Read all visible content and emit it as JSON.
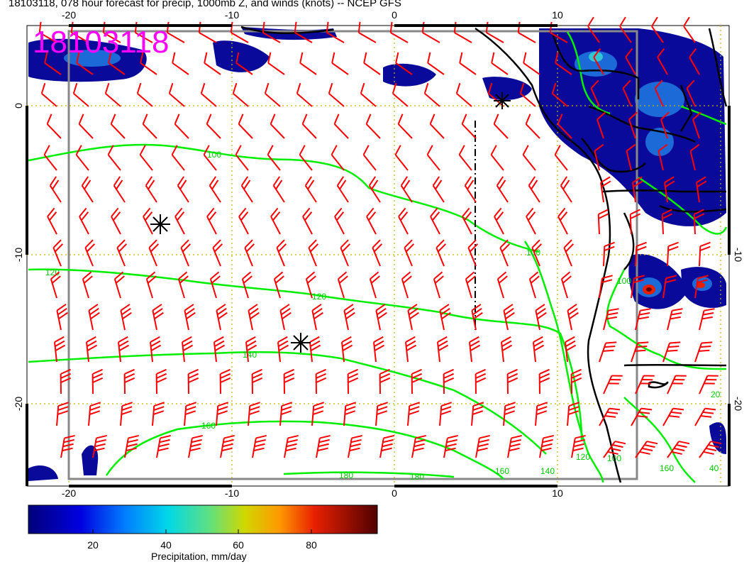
{
  "title": "18103118, 078 hour forecast for precip, 1000mb Z, and winds (knots) -- NCEP GFS",
  "stamp": "18103118",
  "map": {
    "lon_ticks": [
      "-20",
      "-10",
      "0",
      "10"
    ],
    "lat_ticks": [
      "0",
      "-10",
      "-20"
    ],
    "lat_ticks_right": [
      "-10",
      "-20"
    ],
    "contour_labels": [
      "100",
      "100",
      "120",
      "120",
      "140",
      "160",
      "180",
      "180",
      "140",
      "160",
      "120",
      "100",
      "100",
      "160",
      "40",
      "20"
    ],
    "colors": {
      "wind_barbs": "#ff0000",
      "contours": "#00ee00",
      "coastline": "#000000",
      "grid": "#c8b400",
      "frame": "#888888"
    }
  },
  "colorbar": {
    "label": "Precipitation, mm/day",
    "ticks": [
      "20",
      "40",
      "60",
      "80"
    ],
    "colors": [
      "#00007a",
      "#0000d0",
      "#0050ff",
      "#00a8ff",
      "#00e0e0",
      "#40e080",
      "#a0d820",
      "#e0d000",
      "#ff9000",
      "#e82000",
      "#b00000",
      "#600000"
    ]
  }
}
